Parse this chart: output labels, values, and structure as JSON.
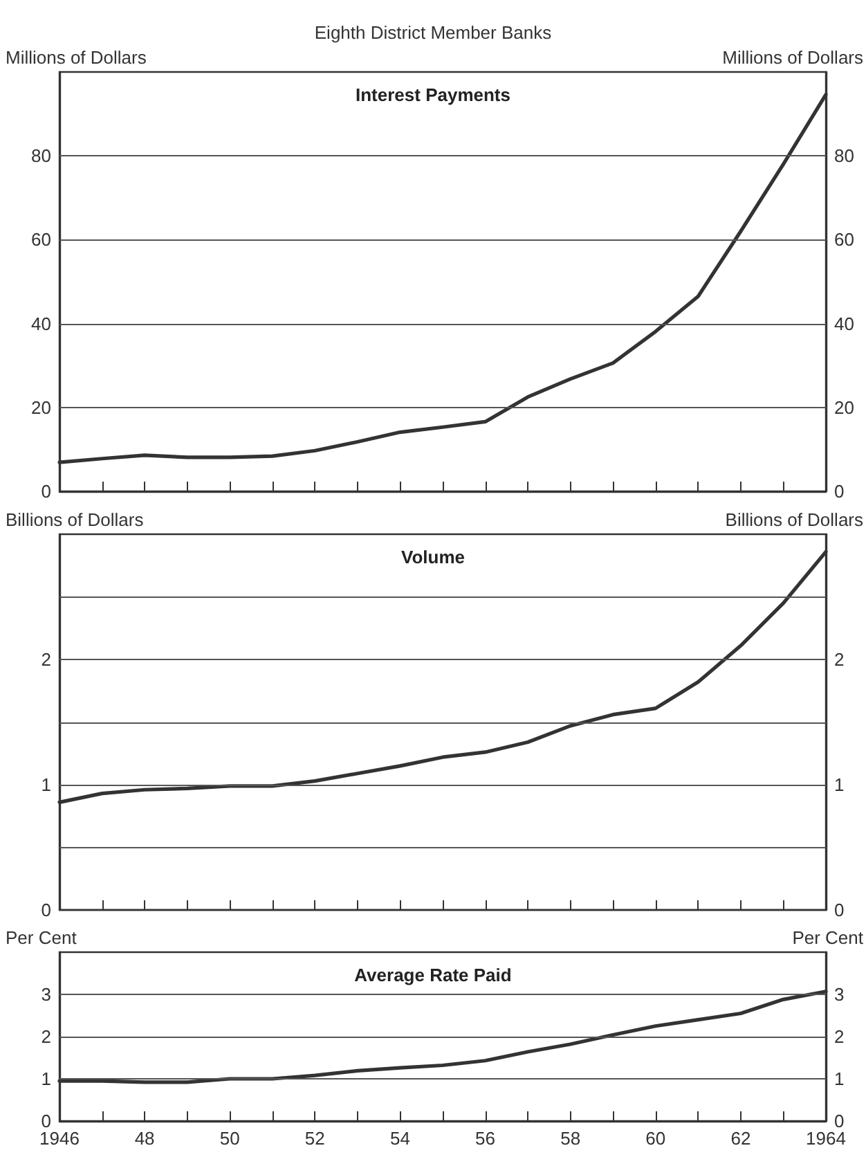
{
  "chart_data": [
    {
      "type": "line",
      "title": "Interest Payments",
      "subtitle": "Eighth District Member Banks",
      "ylabel": "Millions of Dollars",
      "y2label": "Millions of Dollars",
      "x": [
        1946,
        1947,
        1948,
        1949,
        1950,
        1951,
        1952,
        1953,
        1954,
        1955,
        1956,
        1957,
        1958,
        1959,
        1960,
        1961,
        1962,
        1963,
        1964
      ],
      "series": [
        {
          "color": "#333333",
          "values": [
            6.9,
            7.8,
            8.6,
            8.1,
            8.1,
            8.4,
            9.7,
            11.8,
            14.1,
            15.3,
            16.6,
            22.5,
            26.8,
            30.6,
            38.1,
            46.5,
            62,
            78,
            94.6
          ]
        }
      ],
      "xlim": [
        1946,
        1964
      ],
      "xticks": [
        1946,
        1947,
        1948,
        1949,
        1950,
        1951,
        1952,
        1953,
        1954,
        1955,
        1956,
        1957,
        1958,
        1959,
        1960,
        1961,
        1962,
        1963,
        1964
      ],
      "ylim": [
        0,
        100
      ],
      "yticks": [
        0,
        20,
        40,
        60,
        80
      ],
      "y2lim": [
        0,
        100
      ],
      "y2ticks": [
        0,
        20,
        40,
        60,
        80
      ],
      "grid": "y",
      "tick_labels": "y",
      "line_style": "solid",
      "marker": "none"
    },
    {
      "type": "line",
      "title": "Volume",
      "ylabel": "Billions of Dollars",
      "y2label": "Billions of Dollars",
      "x": [
        1946,
        1947,
        1948,
        1949,
        1950,
        1951,
        1952,
        1953,
        1954,
        1955,
        1956,
        1957,
        1958,
        1959,
        1960,
        1961,
        1962,
        1963,
        1964
      ],
      "series": [
        {
          "color": "#333333",
          "values": [
            0.86,
            0.93,
            0.96,
            0.97,
            0.99,
            0.99,
            1.03,
            1.09,
            1.15,
            1.22,
            1.26,
            1.34,
            1.47,
            1.56,
            1.61,
            1.82,
            2.11,
            2.45,
            2.86
          ]
        }
      ],
      "xlim": [
        1946,
        1964
      ],
      "xticks": [
        1946,
        1947,
        1948,
        1949,
        1950,
        1951,
        1952,
        1953,
        1954,
        1955,
        1956,
        1957,
        1958,
        1959,
        1960,
        1961,
        1962,
        1963,
        1964
      ],
      "ylim": [
        0,
        3
      ],
      "yticks": [
        0,
        {
          "value": 0.5,
          "label": null
        },
        1,
        {
          "value": 1.5,
          "label": null
        },
        2,
        {
          "value": 2.5,
          "label": null
        }
      ],
      "y2lim": [
        0,
        3
      ],
      "y2ticks": [
        0,
        {
          "value": 0.5,
          "label": null
        },
        1,
        {
          "value": 1.5,
          "label": null
        },
        2,
        {
          "value": 2.5,
          "label": null
        }
      ],
      "grid": "y",
      "tick_labels": "y",
      "line_style": "solid",
      "marker": "none"
    },
    {
      "type": "line",
      "title": "Average Rate Paid",
      "ylabel": "Per Cent",
      "y2label": "Per Cent",
      "x": [
        1946,
        1947,
        1948,
        1949,
        1950,
        1951,
        1952,
        1953,
        1954,
        1955,
        1956,
        1957,
        1958,
        1959,
        1960,
        1961,
        1962,
        1963,
        1964
      ],
      "series": [
        {
          "color": "#333333",
          "values": [
            0.95,
            0.95,
            0.92,
            0.92,
            1.0,
            1.0,
            1.08,
            1.19,
            1.26,
            1.32,
            1.43,
            1.64,
            1.82,
            2.04,
            2.25,
            2.4,
            2.55,
            2.88,
            3.07
          ]
        }
      ],
      "xlim": [
        1946,
        1964
      ],
      "xticks": [
        1946,
        {
          "value": 1947,
          "label": null
        },
        {
          "value": 1948,
          "label": "48"
        },
        {
          "value": 1949,
          "label": null
        },
        {
          "value": 1950,
          "label": "50"
        },
        {
          "value": 1951,
          "label": null
        },
        {
          "value": 1952,
          "label": "52"
        },
        {
          "value": 1953,
          "label": null
        },
        {
          "value": 1954,
          "label": "54"
        },
        {
          "value": 1955,
          "label": null
        },
        {
          "value": 1956,
          "label": "56"
        },
        {
          "value": 1957,
          "label": null
        },
        {
          "value": 1958,
          "label": "58"
        },
        {
          "value": 1959,
          "label": null
        },
        {
          "value": 1960,
          "label": "60"
        },
        {
          "value": 1961,
          "label": null
        },
        {
          "value": 1962,
          "label": "62"
        },
        {
          "value": 1963,
          "label": null
        },
        1964
      ],
      "ylim": [
        0,
        4
      ],
      "yticks": [
        0,
        1,
        2,
        3
      ],
      "y2lim": [
        0,
        4
      ],
      "y2ticks": [
        0,
        1,
        2,
        3
      ],
      "grid": "y",
      "line_style": "solid",
      "marker": "none"
    }
  ]
}
